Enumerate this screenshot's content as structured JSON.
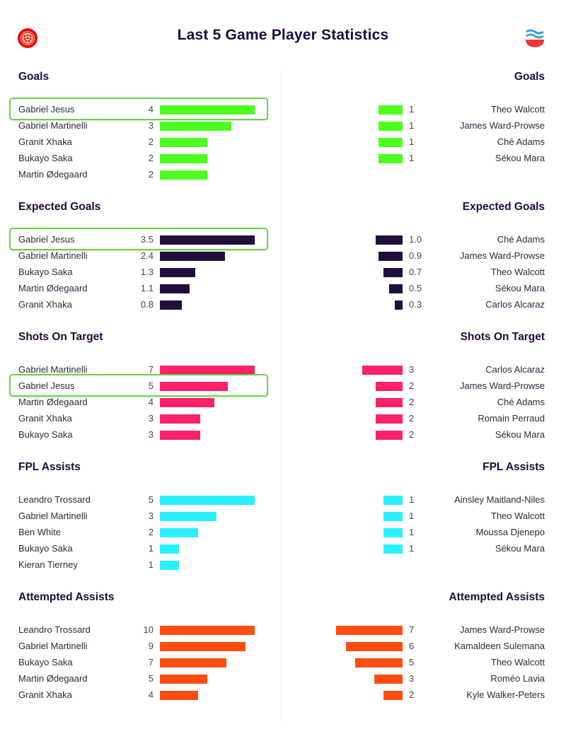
{
  "title": "Last 5 Game Player Statistics",
  "logos": {
    "left": "arsenal-crest-icon",
    "right": "southampton-crest-icon"
  },
  "chart_data": [
    {
      "type": "bar",
      "title": "Goals",
      "color": "#4dff1f",
      "max": 4,
      "left": [
        {
          "name": "Gabriel Jesus",
          "value": 4,
          "highlighted": true
        },
        {
          "name": "Gabriel Martinelli",
          "value": 3
        },
        {
          "name": "Granit Xhaka",
          "value": 2
        },
        {
          "name": "Bukayo Saka",
          "value": 2
        },
        {
          "name": "Martin Ødegaard",
          "value": 2
        }
      ],
      "right": [
        {
          "name": "Theo Walcott",
          "value": 1
        },
        {
          "name": "James Ward-Prowse",
          "value": 1
        },
        {
          "name": "Ché Adams",
          "value": 1
        },
        {
          "name": "Sékou Mara",
          "value": 1
        }
      ]
    },
    {
      "type": "bar",
      "title": "Expected Goals",
      "color": "#1f0f3d",
      "max": 3.5,
      "left": [
        {
          "name": "Gabriel Jesus",
          "value": 3.5,
          "label": "3.5",
          "highlighted": true
        },
        {
          "name": "Gabriel Martinelli",
          "value": 2.4,
          "label": "2.4"
        },
        {
          "name": "Bukayo Saka",
          "value": 1.3,
          "label": "1.3"
        },
        {
          "name": "Martin Ødegaard",
          "value": 1.1,
          "label": "1.1"
        },
        {
          "name": "Granit Xhaka",
          "value": 0.8,
          "label": "0.8"
        }
      ],
      "right": [
        {
          "name": "Ché Adams",
          "value": 1.0,
          "label": "1.0"
        },
        {
          "name": "James Ward-Prowse",
          "value": 0.9,
          "label": "0.9"
        },
        {
          "name": "Theo Walcott",
          "value": 0.7,
          "label": "0.7"
        },
        {
          "name": "Sékou Mara",
          "value": 0.5,
          "label": "0.5"
        },
        {
          "name": "Carlos Alcaraz",
          "value": 0.3,
          "label": "0.3"
        }
      ]
    },
    {
      "type": "bar",
      "title": "Shots On Target",
      "color": "#ff2266",
      "max": 7,
      "left": [
        {
          "name": "Gabriel Martinelli",
          "value": 7
        },
        {
          "name": "Gabriel Jesus",
          "value": 5,
          "highlighted": true
        },
        {
          "name": "Martin Ødegaard",
          "value": 4
        },
        {
          "name": "Granit Xhaka",
          "value": 3
        },
        {
          "name": "Bukayo Saka",
          "value": 3
        }
      ],
      "right": [
        {
          "name": "Carlos Alcaraz",
          "value": 3
        },
        {
          "name": "James Ward-Prowse",
          "value": 2
        },
        {
          "name": "Ché Adams",
          "value": 2
        },
        {
          "name": "Romain Perraud",
          "value": 2
        },
        {
          "name": "Sékou Mara",
          "value": 2
        }
      ]
    },
    {
      "type": "bar",
      "title": "FPL Assists",
      "color": "#2bf0ff",
      "max": 5,
      "left": [
        {
          "name": "Leandro Trossard",
          "value": 5
        },
        {
          "name": "Gabriel Martinelli",
          "value": 3
        },
        {
          "name": "Ben White",
          "value": 2
        },
        {
          "name": "Bukayo Saka",
          "value": 1
        },
        {
          "name": "Kieran Tierney",
          "value": 1
        }
      ],
      "right": [
        {
          "name": "Ainsley Maitland-Niles",
          "value": 1
        },
        {
          "name": "Theo Walcott",
          "value": 1
        },
        {
          "name": "Moussa Djenepo",
          "value": 1
        },
        {
          "name": "Sékou Mara",
          "value": 1
        }
      ]
    },
    {
      "type": "bar",
      "title": "Attempted Assists",
      "color": "#ff4d12",
      "max": 10,
      "left": [
        {
          "name": "Leandro Trossard",
          "value": 10
        },
        {
          "name": "Gabriel Martinelli",
          "value": 9
        },
        {
          "name": "Bukayo Saka",
          "value": 7
        },
        {
          "name": "Martin Ødegaard",
          "value": 5
        },
        {
          "name": "Granit Xhaka",
          "value": 4
        }
      ],
      "right": [
        {
          "name": "James Ward-Prowse",
          "value": 7
        },
        {
          "name": "Kamaldeen Sulemana",
          "value": 6
        },
        {
          "name": "Theo Walcott",
          "value": 5
        },
        {
          "name": "Roméo Lavia",
          "value": 3
        },
        {
          "name": "Kyle Walker-Peters",
          "value": 2
        }
      ]
    }
  ]
}
